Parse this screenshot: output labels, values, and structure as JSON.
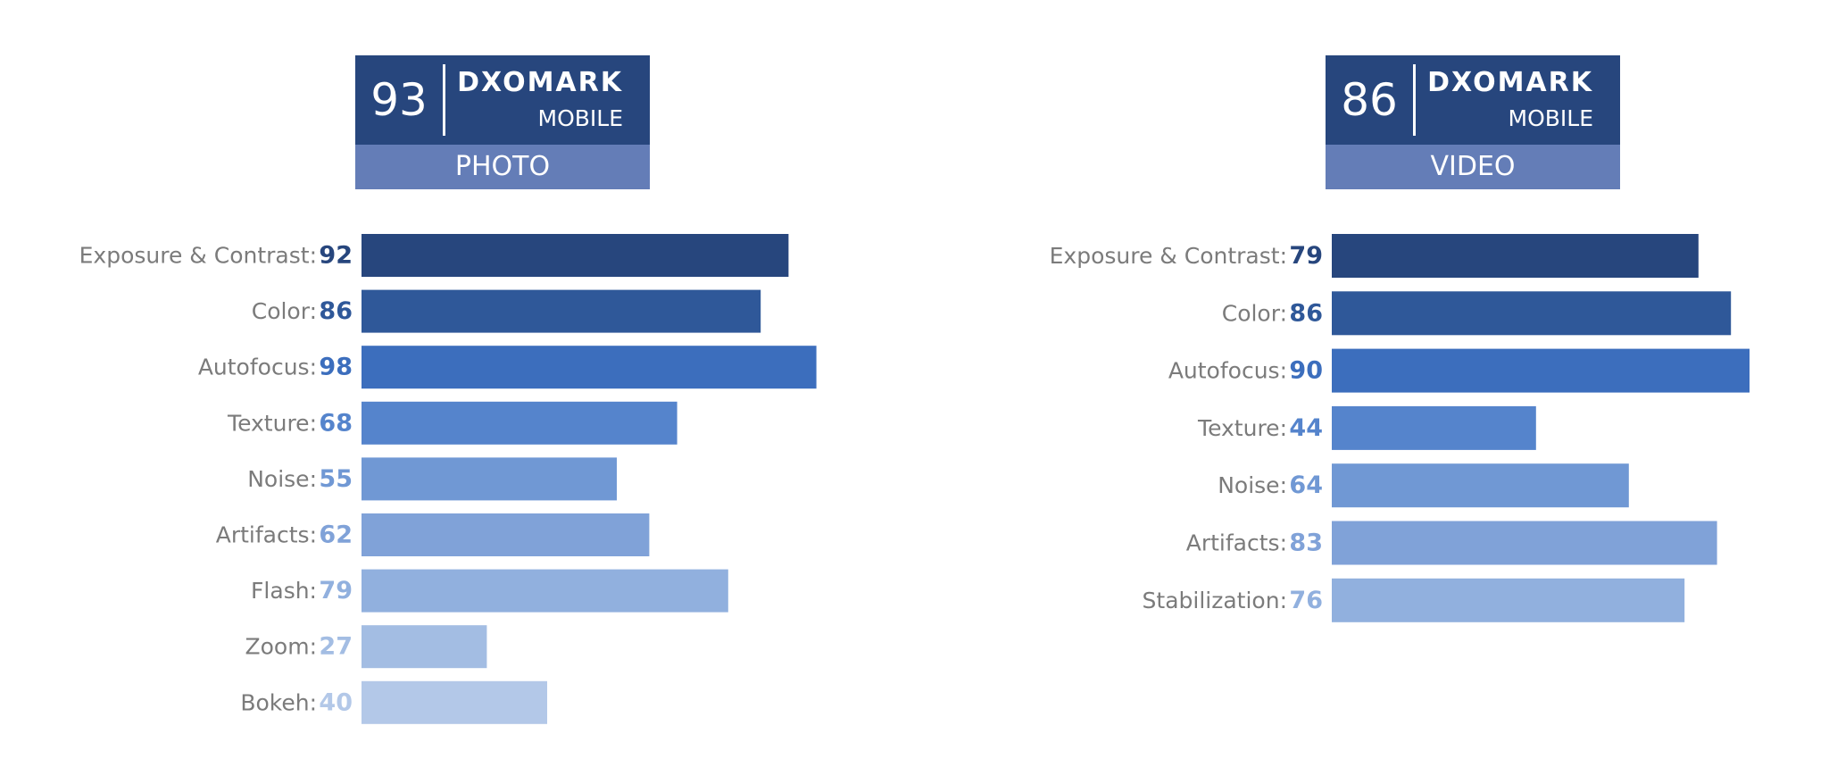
{
  "chart_data": [
    {
      "type": "bar",
      "orientation": "horizontal",
      "badge": {
        "score": "93",
        "brand": "DXOMARK",
        "subtitle": "MOBILE",
        "category": "PHOTO"
      },
      "categories": [
        "Exposure & Contrast:",
        "Color:",
        "Autofocus:",
        "Texture:",
        "Noise:",
        "Artifacts:",
        "Flash:",
        "Zoom:",
        "Bokeh:"
      ],
      "values": [
        92,
        86,
        98,
        68,
        55,
        62,
        79,
        27,
        40
      ],
      "colors": [
        "#27467d",
        "#2f5899",
        "#3c6ebd",
        "#5584cc",
        "#7098d4",
        "#80a2d8",
        "#91b0de",
        "#a3bde3",
        "#b3c8e8"
      ],
      "xlim": [
        0,
        100
      ],
      "grid": false,
      "legend": "none"
    },
    {
      "type": "bar",
      "orientation": "horizontal",
      "badge": {
        "score": "86",
        "brand": "DXOMARK",
        "subtitle": "MOBILE",
        "category": "VIDEO"
      },
      "categories": [
        "Exposure & Contrast:",
        "Color:",
        "Autofocus:",
        "Texture:",
        "Noise:",
        "Artifacts:",
        "Stabilization:"
      ],
      "values": [
        79,
        86,
        90,
        44,
        64,
        83,
        76
      ],
      "colors": [
        "#27467d",
        "#2f5899",
        "#3c6ebd",
        "#5584cc",
        "#7098d4",
        "#80a2d8",
        "#91b0de"
      ],
      "xlim": [
        0,
        100
      ],
      "grid": false,
      "legend": "none"
    }
  ]
}
